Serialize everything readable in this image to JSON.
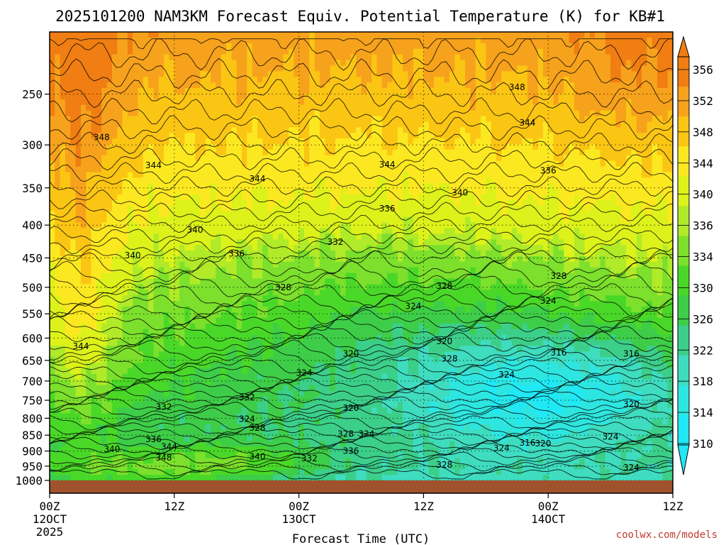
{
  "chart_data": {
    "type": "heatmap",
    "title": "2025101200 NAM3KM Forecast Equiv. Potential Temperature (K) for KB#1",
    "xlabel": "Forecast Time (UTC)",
    "ylabel": "",
    "credit": "coolwx.com/models",
    "x_range_hours": [
      0,
      60
    ],
    "y_range_hpa": [
      200,
      1000
    ],
    "surface_hpa": 1000,
    "x_ticks": [
      {
        "hour": 0,
        "label": "00Z",
        "sub1": "12OCT",
        "sub2": "2025"
      },
      {
        "hour": 12,
        "label": "12Z",
        "sub1": "",
        "sub2": ""
      },
      {
        "hour": 24,
        "label": "00Z",
        "sub1": "13OCT",
        "sub2": ""
      },
      {
        "hour": 36,
        "label": "12Z",
        "sub1": "",
        "sub2": ""
      },
      {
        "hour": 48,
        "label": "00Z",
        "sub1": "14OCT",
        "sub2": ""
      },
      {
        "hour": 60,
        "label": "12Z",
        "sub1": "",
        "sub2": ""
      }
    ],
    "y_ticks": [
      {
        "p": 250,
        "label": "250"
      },
      {
        "p": 300,
        "label": "300"
      },
      {
        "p": 350,
        "label": "350"
      },
      {
        "p": 400,
        "label": "400"
      },
      {
        "p": 450,
        "label": "450"
      },
      {
        "p": 500,
        "label": "500"
      },
      {
        "p": 550,
        "label": "550"
      },
      {
        "p": 600,
        "label": "600"
      },
      {
        "p": 650,
        "label": "650"
      },
      {
        "p": 700,
        "label": "700"
      },
      {
        "p": 750,
        "label": "750"
      },
      {
        "p": 800,
        "label": "800"
      },
      {
        "p": 850,
        "label": "850"
      },
      {
        "p": 900,
        "label": "900"
      },
      {
        "p": 950,
        "label": "950"
      },
      {
        "p": 1000,
        "label": "1000"
      }
    ],
    "colorbar": {
      "labels": [
        "356",
        "352",
        "348",
        "344",
        "340",
        "336",
        "334",
        "330",
        "326",
        "322",
        "318",
        "314",
        "310"
      ],
      "colors": [
        "#f07e12",
        "#f7a21c",
        "#fbc514",
        "#fce820",
        "#dcf21a",
        "#b0ea28",
        "#7ce02c",
        "#4ad828",
        "#3ecd48",
        "#3ccf8a",
        "#3fdcc0",
        "#2ee6e0",
        "#20e8f4"
      ]
    },
    "contour_labels": [
      {
        "t": 5.0,
        "p": 292,
        "v": "348"
      },
      {
        "t": 10.0,
        "p": 323,
        "v": "344"
      },
      {
        "t": 20.0,
        "p": 339,
        "v": "344"
      },
      {
        "t": 32.5,
        "p": 322,
        "v": "344"
      },
      {
        "t": 45.0,
        "p": 244,
        "v": "348"
      },
      {
        "t": 46.0,
        "p": 277,
        "v": "344"
      },
      {
        "t": 48.0,
        "p": 329,
        "v": "336"
      },
      {
        "t": 39.5,
        "p": 356,
        "v": "340"
      },
      {
        "t": 32.5,
        "p": 377,
        "v": "336"
      },
      {
        "t": 14.0,
        "p": 407,
        "v": "340"
      },
      {
        "t": 8.0,
        "p": 446,
        "v": "340"
      },
      {
        "t": 18.0,
        "p": 443,
        "v": "336"
      },
      {
        "t": 27.5,
        "p": 425,
        "v": "332"
      },
      {
        "t": 22.5,
        "p": 500,
        "v": "328"
      },
      {
        "t": 38.0,
        "p": 498,
        "v": "328"
      },
      {
        "t": 49.0,
        "p": 480,
        "v": "328"
      },
      {
        "t": 35.0,
        "p": 535,
        "v": "324"
      },
      {
        "t": 48.0,
        "p": 525,
        "v": "324"
      },
      {
        "t": 38.0,
        "p": 607,
        "v": "320"
      },
      {
        "t": 29.0,
        "p": 635,
        "v": "320"
      },
      {
        "t": 38.5,
        "p": 646,
        "v": "328"
      },
      {
        "t": 3.0,
        "p": 618,
        "v": "344"
      },
      {
        "t": 24.5,
        "p": 680,
        "v": "324"
      },
      {
        "t": 49.0,
        "p": 632,
        "v": "316"
      },
      {
        "t": 56.0,
        "p": 635,
        "v": "316"
      },
      {
        "t": 44.0,
        "p": 684,
        "v": "324"
      },
      {
        "t": 19.0,
        "p": 742,
        "v": "332"
      },
      {
        "t": 11.0,
        "p": 768,
        "v": "332"
      },
      {
        "t": 29.0,
        "p": 771,
        "v": "320"
      },
      {
        "t": 19.0,
        "p": 802,
        "v": "324"
      },
      {
        "t": 20.0,
        "p": 828,
        "v": "328"
      },
      {
        "t": 56.0,
        "p": 761,
        "v": "320"
      },
      {
        "t": 28.5,
        "p": 846,
        "v": "328"
      },
      {
        "t": 30.5,
        "p": 846,
        "v": "324"
      },
      {
        "t": 10.0,
        "p": 863,
        "v": "336"
      },
      {
        "t": 11.5,
        "p": 886,
        "v": "344"
      },
      {
        "t": 6.0,
        "p": 894,
        "v": "340"
      },
      {
        "t": 11.0,
        "p": 922,
        "v": "348"
      },
      {
        "t": 20.0,
        "p": 918,
        "v": "340"
      },
      {
        "t": 25.0,
        "p": 924,
        "v": "332"
      },
      {
        "t": 29.0,
        "p": 900,
        "v": "336"
      },
      {
        "t": 43.5,
        "p": 891,
        "v": "324"
      },
      {
        "t": 46.0,
        "p": 874,
        "v": "316"
      },
      {
        "t": 47.5,
        "p": 876,
        "v": "320"
      },
      {
        "t": 54.0,
        "p": 855,
        "v": "324"
      },
      {
        "t": 38.0,
        "p": 945,
        "v": "328"
      },
      {
        "t": 56.0,
        "p": 955,
        "v": "324"
      }
    ],
    "note": "Filled contours of equivalent potential temperature (K): ~348-356 K aloft (200-300 hPa), ~336-344 K mid levels, minimum ~312-320 K near 700-800 hPa around 00Z 14OCT, warm 336-348 K near the surface early in the period."
  }
}
